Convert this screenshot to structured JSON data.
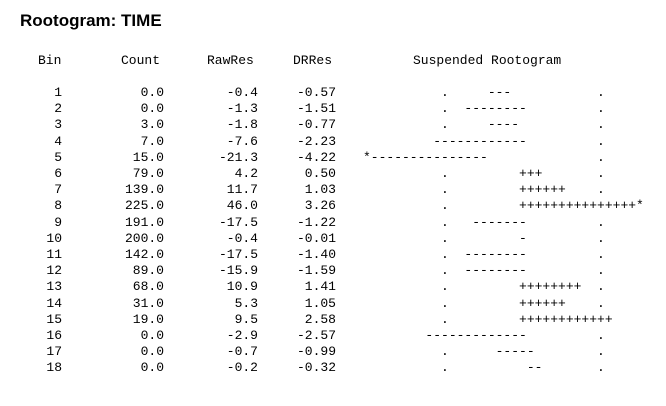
{
  "title": "Rootogram: TIME",
  "headers": {
    "bin": "Bin",
    "count": "Count",
    "rawres": "RawRes",
    "drres": "DRRes",
    "rootogram": "Suspended Rootogram"
  },
  "rows": [
    {
      "bin": "1",
      "count": "0.0",
      "rawres": "-0.4",
      "drres": "-0.57",
      "rootogram": "          .     ---           ."
    },
    {
      "bin": "2",
      "count": "0.0",
      "rawres": "-1.3",
      "drres": "-1.51",
      "rootogram": "          .  --------         ."
    },
    {
      "bin": "3",
      "count": "3.0",
      "rawres": "-1.8",
      "drres": "-0.77",
      "rootogram": "          .     ----          ."
    },
    {
      "bin": "4",
      "count": "7.0",
      "rawres": "-7.6",
      "drres": "-2.23",
      "rootogram": "         ------------         ."
    },
    {
      "bin": "5",
      "count": "15.0",
      "rawres": "-21.3",
      "drres": "-4.22",
      "rootogram": "*---------------              ."
    },
    {
      "bin": "6",
      "count": "79.0",
      "rawres": "4.2",
      "drres": "0.50",
      "rootogram": "          .         +++       ."
    },
    {
      "bin": "7",
      "count": "139.0",
      "rawres": "11.7",
      "drres": "1.03",
      "rootogram": "          .         ++++++    ."
    },
    {
      "bin": "8",
      "count": "225.0",
      "rawres": "46.0",
      "drres": "3.26",
      "rootogram": "          .         +++++++++++++++*"
    },
    {
      "bin": "9",
      "count": "191.0",
      "rawres": "-17.5",
      "drres": "-1.22",
      "rootogram": "          .   -------         ."
    },
    {
      "bin": "10",
      "count": "200.0",
      "rawres": "-0.4",
      "drres": "-0.01",
      "rootogram": "          .         -         ."
    },
    {
      "bin": "11",
      "count": "142.0",
      "rawres": "-17.5",
      "drres": "-1.40",
      "rootogram": "          .  --------         ."
    },
    {
      "bin": "12",
      "count": "89.0",
      "rawres": "-15.9",
      "drres": "-1.59",
      "rootogram": "          .  --------         ."
    },
    {
      "bin": "13",
      "count": "68.0",
      "rawres": "10.9",
      "drres": "1.41",
      "rootogram": "          .         ++++++++  ."
    },
    {
      "bin": "14",
      "count": "31.0",
      "rawres": "5.3",
      "drres": "1.05",
      "rootogram": "          .         ++++++    ."
    },
    {
      "bin": "15",
      "count": "19.0",
      "rawres": "9.5",
      "drres": "2.58",
      "rootogram": "          .         ++++++++++++"
    },
    {
      "bin": "16",
      "count": "0.0",
      "rawres": "-2.9",
      "drres": "-2.57",
      "rootogram": "        -------------         ."
    },
    {
      "bin": "17",
      "count": "0.0",
      "rawres": "-0.7",
      "drres": "-0.99",
      "rootogram": "          .      -----        ."
    },
    {
      "bin": "18",
      "count": "0.0",
      "rawres": "-0.2",
      "drres": "-0.32",
      "rootogram": "          .          --       ."
    }
  ]
}
